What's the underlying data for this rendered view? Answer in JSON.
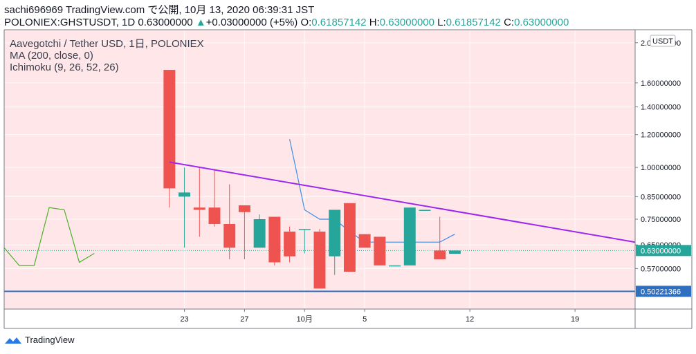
{
  "header": {
    "line1": "sachi696969 TradingView.com で公開, 10月 13, 2020 06:39:31 JST",
    "symbol": "POLONIEX:GHSTUSDT, 1D",
    "last": "0.63000000",
    "arrow": "▲",
    "change": "+0.03000000 (+5%)",
    "o_label": "O:",
    "o_val": "0.61857142",
    "h_label": "H:",
    "h_val": "0.63000000",
    "l_label": "L:",
    "l_val": "0.61857142",
    "c_label": "C:",
    "c_val": "0.63000000"
  },
  "legend": {
    "title": "Aavegotchi / Tether USD, 1日, POLONIEX",
    "ma": "MA (200, close, 0)",
    "ichimoku": "Ichimoku (9, 26, 52, 26)"
  },
  "footer": {
    "brand": "TradingView"
  },
  "colors": {
    "background": "#ffe6e9",
    "up": "#26a69a",
    "down": "#ef5350",
    "trendline": "#9c27f0",
    "support": "#2f6fbf",
    "ichimoku_green": "#4caf2a",
    "ichimoku_blue": "#3d8ee6"
  },
  "chart_data": {
    "type": "candlestick",
    "y_scale": "log",
    "ylim": [
      0.455,
      2.15
    ],
    "currency": "USDT",
    "y_ticks": [
      {
        "value": 2.0,
        "label": "2.00000000"
      },
      {
        "value": 1.6,
        "label": "1.60000000"
      },
      {
        "value": 1.4,
        "label": "1.40000000"
      },
      {
        "value": 1.2,
        "label": "1.20000000"
      },
      {
        "value": 1.0,
        "label": "1.00000000"
      },
      {
        "value": 0.85,
        "label": "0.85000000"
      },
      {
        "value": 0.75,
        "label": "0.75000000"
      },
      {
        "value": 0.65,
        "label": "0.65000000"
      },
      {
        "value": 0.57,
        "label": "0.57000000"
      }
    ],
    "x_ticks": [
      {
        "date": "2020-09-23",
        "label": "23"
      },
      {
        "date": "2020-09-27",
        "label": "27"
      },
      {
        "date": "2020-10-01",
        "label": "10月"
      },
      {
        "date": "2020-10-05",
        "label": "5"
      },
      {
        "date": "2020-10-12",
        "label": "12"
      },
      {
        "date": "2020-10-19",
        "label": "19"
      }
    ],
    "x_range": [
      "2020-09-11",
      "2020-10-23"
    ],
    "candles": [
      {
        "date": "2020-09-22",
        "o": 1.72,
        "h": 1.72,
        "l": 0.8,
        "c": 0.89
      },
      {
        "date": "2020-09-23",
        "o": 0.85,
        "h": 1.0,
        "l": 0.64,
        "c": 0.87
      },
      {
        "date": "2020-09-24",
        "o": 0.8,
        "h": 1.0,
        "l": 0.68,
        "c": 0.79
      },
      {
        "date": "2020-09-25",
        "o": 0.8,
        "h": 0.99,
        "l": 0.72,
        "c": 0.73
      },
      {
        "date": "2020-09-26",
        "o": 0.73,
        "h": 0.91,
        "l": 0.6,
        "c": 0.64
      },
      {
        "date": "2020-09-27",
        "o": 0.81,
        "h": 0.81,
        "l": 0.6,
        "c": 0.78
      },
      {
        "date": "2020-09-28",
        "o": 0.64,
        "h": 0.77,
        "l": 0.64,
        "c": 0.75
      },
      {
        "date": "2020-09-29",
        "o": 0.76,
        "h": 0.76,
        "l": 0.58,
        "c": 0.59
      },
      {
        "date": "2020-09-30",
        "o": 0.7,
        "h": 0.72,
        "l": 0.59,
        "c": 0.61
      },
      {
        "date": "2020-10-01",
        "o": 0.71,
        "h": 0.71,
        "l": 0.62,
        "c": 0.71
      },
      {
        "date": "2020-10-02",
        "o": 0.7,
        "h": 0.71,
        "l": 0.51,
        "c": 0.51
      },
      {
        "date": "2020-10-03",
        "o": 0.61,
        "h": 0.79,
        "l": 0.55,
        "c": 0.79
      },
      {
        "date": "2020-10-04",
        "o": 0.82,
        "h": 0.82,
        "l": 0.56,
        "c": 0.56
      },
      {
        "date": "2020-10-05",
        "o": 0.69,
        "h": 0.69,
        "l": 0.64,
        "c": 0.64
      },
      {
        "date": "2020-10-06",
        "o": 0.68,
        "h": 0.68,
        "l": 0.58,
        "c": 0.58
      },
      {
        "date": "2020-10-07",
        "o": 0.58,
        "h": 0.58,
        "l": 0.58,
        "c": 0.58
      },
      {
        "date": "2020-10-08",
        "o": 0.58,
        "h": 0.8,
        "l": 0.58,
        "c": 0.8
      },
      {
        "date": "2020-10-09",
        "o": 0.79,
        "h": 0.79,
        "l": 0.79,
        "c": 0.79
      },
      {
        "date": "2020-10-10",
        "o": 0.63,
        "h": 0.76,
        "l": 0.6,
        "c": 0.6
      },
      {
        "date": "2020-10-11",
        "o": 0.6185714,
        "h": 0.63,
        "l": 0.6185714,
        "c": 0.63
      }
    ],
    "ichimoku_green": [
      {
        "date": "2020-09-11",
        "v": 0.64
      },
      {
        "date": "2020-09-12",
        "v": 0.58
      },
      {
        "date": "2020-09-13",
        "v": 0.58
      },
      {
        "date": "2020-09-14",
        "v": 0.8
      },
      {
        "date": "2020-09-15",
        "v": 0.79
      },
      {
        "date": "2020-09-16",
        "v": 0.59
      },
      {
        "date": "2020-09-17",
        "v": 0.62
      }
    ],
    "ichimoku_blue": [
      {
        "date": "2020-09-30",
        "v": 1.17
      },
      {
        "date": "2020-10-01",
        "v": 0.79
      },
      {
        "date": "2020-10-02",
        "v": 0.75
      },
      {
        "date": "2020-10-03",
        "v": 0.75
      },
      {
        "date": "2020-10-04",
        "v": 0.7
      },
      {
        "date": "2020-10-05",
        "v": 0.66
      },
      {
        "date": "2020-10-06",
        "v": 0.66
      },
      {
        "date": "2020-10-07",
        "v": 0.66
      },
      {
        "date": "2020-10-08",
        "v": 0.66
      },
      {
        "date": "2020-10-09",
        "v": 0.66
      },
      {
        "date": "2020-10-10",
        "v": 0.66
      },
      {
        "date": "2020-10-11",
        "v": 0.69
      }
    ],
    "trendline": [
      {
        "date": "2020-09-22",
        "v": 1.03
      },
      {
        "date": "2020-10-23",
        "v": 0.66
      }
    ],
    "support_level": 0.50221366,
    "support_label": "0.50221366",
    "last_price": 0.63,
    "last_label": "0.63000000"
  }
}
